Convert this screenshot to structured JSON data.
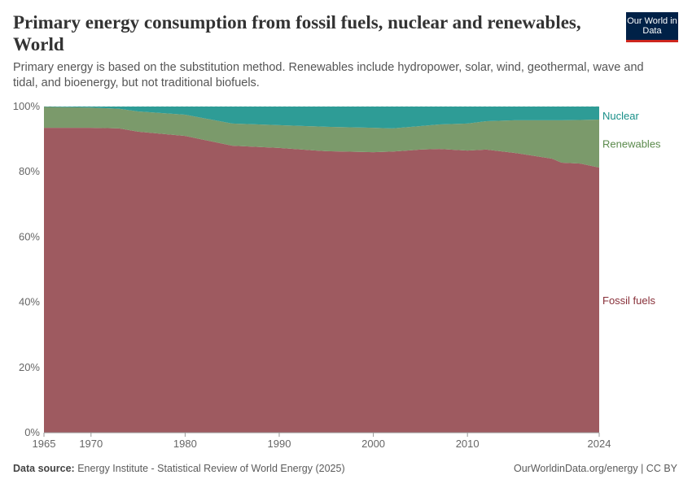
{
  "header": {
    "title": "Primary energy consumption from fossil fuels, nuclear and renewables, World",
    "subtitle": "Primary energy is based on the substitution method. Renewables include hydropower, solar, wind, geothermal, wave and tidal, and bioenergy, but not traditional biofuels.",
    "logo": "Our World in Data"
  },
  "footer": {
    "source_label": "Data source:",
    "source": "Energy Institute - Statistical Review of World Energy (2025)",
    "credit": "OurWorldinData.org/energy | CC BY"
  },
  "chart_data": {
    "type": "area",
    "stacked": true,
    "x": [
      1965,
      1970,
      1973,
      1975,
      1980,
      1985,
      1990,
      1995,
      2000,
      2002,
      2005,
      2007,
      2010,
      2012,
      2015,
      2019,
      2020,
      2022,
      2024
    ],
    "xticks": [
      "1965",
      "1970",
      "1980",
      "1990",
      "2000",
      "2010",
      "2024"
    ],
    "yticks": [
      "0%",
      "20%",
      "40%",
      "60%",
      "80%",
      "100%"
    ],
    "ylim": [
      0,
      100
    ],
    "grid": "horizontal dashed",
    "legend": "right, inline labels",
    "series": [
      {
        "name": "Fossil fuels",
        "color": "#9e5a60",
        "label_color": "#883039",
        "values": [
          93.5,
          93.5,
          93.3,
          92.3,
          91,
          88,
          87.3,
          86.3,
          86,
          86.2,
          86.8,
          87,
          86.5,
          86.8,
          85.8,
          84,
          82.8,
          82.5,
          81.3
        ]
      },
      {
        "name": "Renewables",
        "color": "#7b9a6b",
        "label_color": "#5b8a4c",
        "values": [
          6.4,
          6.2,
          6.0,
          6.2,
          6.5,
          6.8,
          7.0,
          7.5,
          7.5,
          7.1,
          7.2,
          7.5,
          8.3,
          8.7,
          10.0,
          11.8,
          13.0,
          13.4,
          14.7
        ]
      },
      {
        "name": "Nuclear",
        "color": "#2e9c96",
        "label_color": "#188f88",
        "values": [
          0.1,
          0.3,
          0.7,
          1.5,
          2.5,
          5.2,
          5.7,
          6.2,
          6.5,
          6.7,
          6.0,
          5.5,
          5.2,
          4.5,
          4.2,
          4.2,
          4.2,
          4.1,
          4.0
        ]
      }
    ]
  }
}
